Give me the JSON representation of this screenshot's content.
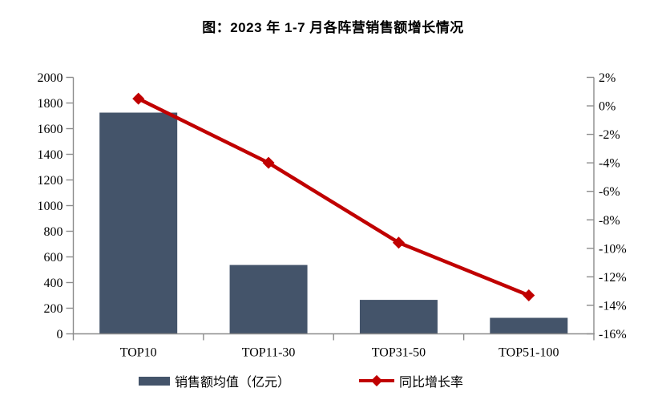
{
  "title": "图：2023 年 1-7 月各阵营销售额增长情况",
  "colors": {
    "bar": "#44546A",
    "line": "#C00000",
    "axis": "#8C8C8C",
    "text": "#000000",
    "background": "#FFFFFF"
  },
  "legend": {
    "bar_label": "销售额均值（亿元）",
    "line_label": "同比增长率"
  },
  "chart_data": {
    "type": "combo-bar-line",
    "title": "图：2023 年 1-7 月各阵营销售额增长情况",
    "categories": [
      "TOP10",
      "TOP11-30",
      "TOP31-50",
      "TOP51-100"
    ],
    "series": [
      {
        "name": "销售额均值（亿元）",
        "type": "bar",
        "axis": "left",
        "color": "#44546A",
        "values": [
          1725,
          537,
          265,
          125
        ]
      },
      {
        "name": "同比增长率",
        "type": "line",
        "axis": "right",
        "color": "#C00000",
        "marker": "diamond",
        "values": [
          0.5,
          -4.0,
          -9.6,
          -13.3
        ],
        "unit": "%"
      }
    ],
    "left_axis": {
      "min": 0,
      "max": 2000,
      "step": 200,
      "tick_labels_top_down": [
        "2000",
        "1800",
        "1600",
        "1400",
        "1200",
        "1000",
        "800",
        "600",
        "400",
        "200",
        "0"
      ]
    },
    "right_axis": {
      "min": -16,
      "max": 2,
      "step": 2,
      "suffix": "%",
      "tick_labels_top_down": [
        "2%",
        "0%",
        "-2%",
        "-4%",
        "-6%",
        "-8%",
        "-10%",
        "-12%",
        "-14%",
        "-16%"
      ]
    },
    "grid": false,
    "legend_position": "bottom",
    "xlabel": "",
    "ylabel_left": "",
    "ylabel_right": ""
  }
}
